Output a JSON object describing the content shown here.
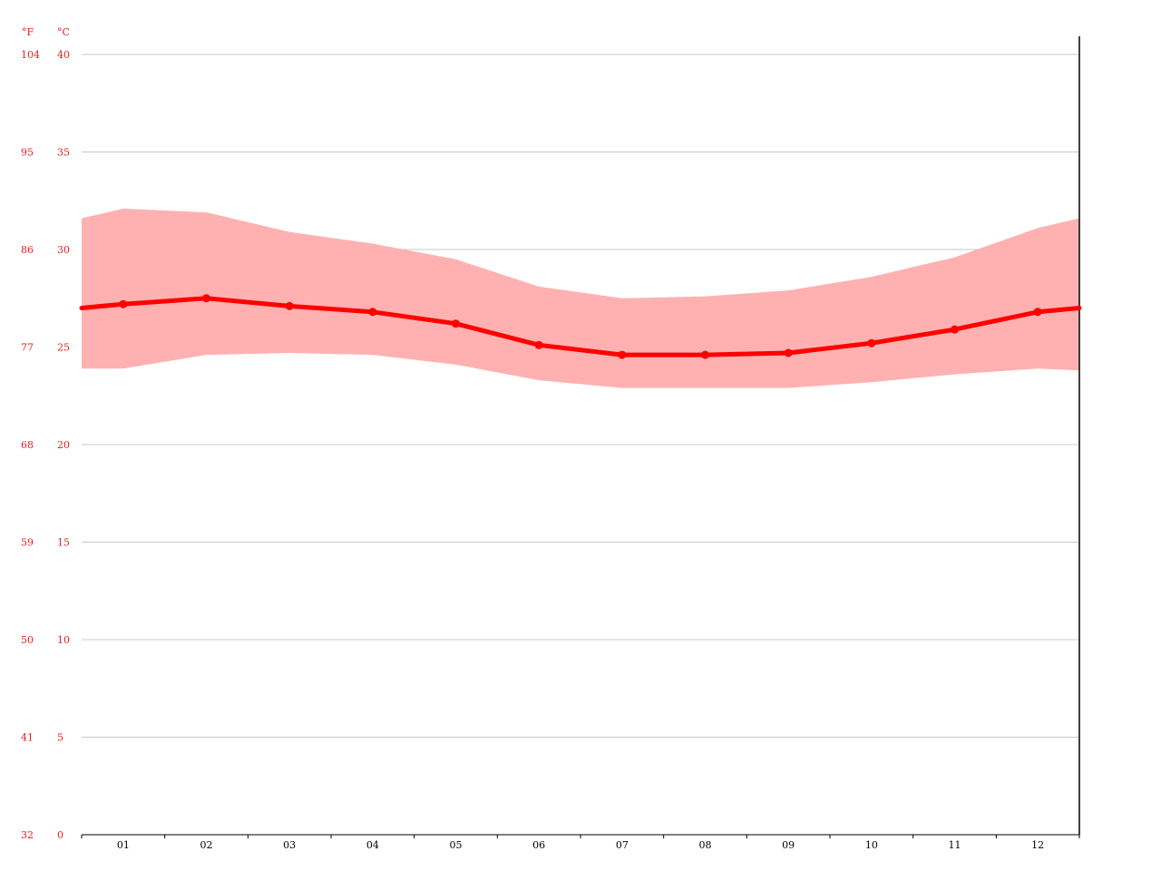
{
  "colors": {
    "line": "#ff0000",
    "band": "#ffb1b1",
    "axis_label": "#e8201e",
    "month_label": "#000000",
    "grid": "#c8c8c8",
    "axis": "#000000"
  },
  "chart_data": {
    "type": "line",
    "title": "",
    "xlabel": "",
    "ylabel": "",
    "units": {
      "fahrenheit": "°F",
      "celsius": "°C"
    },
    "categories": [
      "01",
      "02",
      "03",
      "04",
      "05",
      "06",
      "07",
      "08",
      "09",
      "10",
      "11",
      "12"
    ],
    "series": [
      {
        "values": [
          27.2,
          27.5,
          27.1,
          26.8,
          26.2,
          25.1,
          24.6,
          24.6,
          24.7,
          25.2,
          25.9,
          26.8
        ]
      }
    ],
    "band": {
      "max": [
        32.1,
        31.9,
        30.9,
        30.3,
        29.5,
        28.1,
        27.5,
        27.6,
        27.9,
        28.6,
        29.6,
        31.1
      ],
      "min": [
        23.9,
        24.6,
        24.7,
        24.6,
        24.1,
        23.3,
        22.9,
        22.9,
        22.9,
        23.2,
        23.6,
        23.9
      ],
      "edge_left": {
        "max": 31.6,
        "min": 23.9
      },
      "edge_right": {
        "max": 31.6,
        "min": 23.8
      },
      "edge_left_mean": 27.0,
      "edge_right_mean": 27.0
    },
    "ylim": [
      0,
      40
    ],
    "y_ticks_c": [
      "40",
      "35",
      "30",
      "25",
      "20",
      "15",
      "10",
      "5",
      "0"
    ],
    "y_ticks_f": [
      "104",
      "95",
      "86",
      "77",
      "68",
      "59",
      "50",
      "41",
      "32"
    ],
    "grid": true
  }
}
